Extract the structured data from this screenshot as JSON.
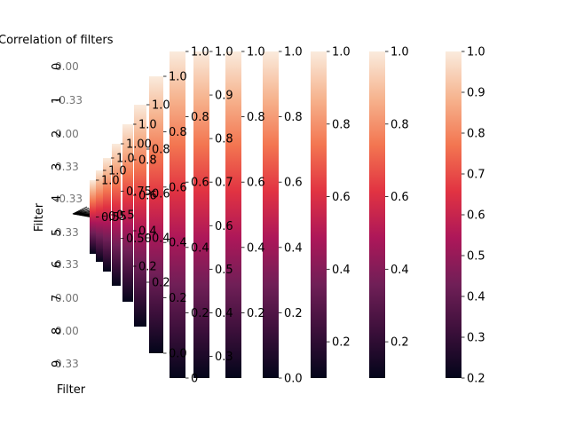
{
  "chart_data": {
    "type": "heatmap",
    "title": "Correlation of filters",
    "xlabel": "Filter",
    "ylabel": "Filter",
    "colormap": "rocket",
    "colormap_stops": [
      "#03051a",
      "#3b0f3a",
      "#701f57",
      "#ad1759",
      "#e13342",
      "#f37651",
      "#f6b48f",
      "#faebdd"
    ],
    "row_tick_labels": [
      "0",
      "1",
      "2",
      "3",
      "4",
      "5",
      "6",
      "7",
      "8",
      "9"
    ],
    "colorbars": [
      {
        "vmin": 0.2,
        "vmax": 1.0,
        "ticks": [
          "0.2",
          "0.3",
          "0.4",
          "0.5",
          "0.6",
          "0.7",
          "0.8",
          "0.9",
          "1.0"
        ]
      },
      {
        "vmin": 0.1,
        "vmax": 1.0,
        "ticks": [
          "0.2",
          "0.4",
          "0.6",
          "0.8",
          "1.0"
        ]
      },
      {
        "vmin": 0.1,
        "vmax": 1.0,
        "ticks": [
          "0.2",
          "0.4",
          "0.6",
          "0.8",
          "1.0"
        ]
      },
      {
        "vmin": 0.0,
        "vmax": 1.0,
        "ticks": [
          "0.0",
          "0.2",
          "0.4",
          "0.6",
          "0.8",
          "1.0"
        ]
      },
      {
        "vmin": 0.0,
        "vmax": 1.0,
        "ticks": [
          "0.2",
          "0.4",
          "0.6",
          "0.8",
          "1.0"
        ]
      },
      {
        "vmin": 0.25,
        "vmax": 1.0,
        "ticks": [
          "0.3",
          "0.4",
          "0.5",
          "0.6",
          "0.7",
          "0.8",
          "0.9",
          "1.0"
        ]
      },
      {
        "vmin": 0.0,
        "vmax": 1.0,
        "ticks": [
          "0",
          "0.2",
          "0.4",
          "0.6",
          "0.8",
          "1.0"
        ]
      },
      {
        "vmin": 0.0,
        "vmax": 1.0,
        "ticks": [
          "0.0",
          "0.2",
          "0.4",
          "0.6",
          "0.8",
          "1.0"
        ]
      },
      {
        "vmin": 0.0,
        "vmax": 1.0,
        "ticks": [
          "0.2",
          "0.4",
          "0.6",
          "0.8",
          "1.0"
        ]
      },
      {
        "vmin": 0.0,
        "vmax": 1.0,
        "ticks": [
          "0.2",
          "0.4",
          "0.6",
          "0.8",
          "1.0"
        ]
      },
      {
        "vmin": 0.25,
        "vmax": 1.0,
        "ticks": [
          "0.50",
          "0.75",
          "1.00"
        ]
      },
      {
        "vmin": 0.0,
        "vmax": 1.0,
        "ticks": [
          "0.5",
          "1.0"
        ]
      },
      {
        "vmin": 0.0,
        "vmax": 1.0,
        "ticks": [
          "0.5",
          "1.0"
        ]
      },
      {
        "vmin": 0.0,
        "vmax": 1.0,
        "ticks": [
          "0.5",
          "1.0"
        ]
      }
    ],
    "ghost_labels": [
      "0.00",
      "-0.33",
      "0.00",
      "0.33",
      "-0.33",
      "0.33",
      "0.33",
      "0.00",
      "0.00",
      "0.33"
    ],
    "grid": false
  }
}
